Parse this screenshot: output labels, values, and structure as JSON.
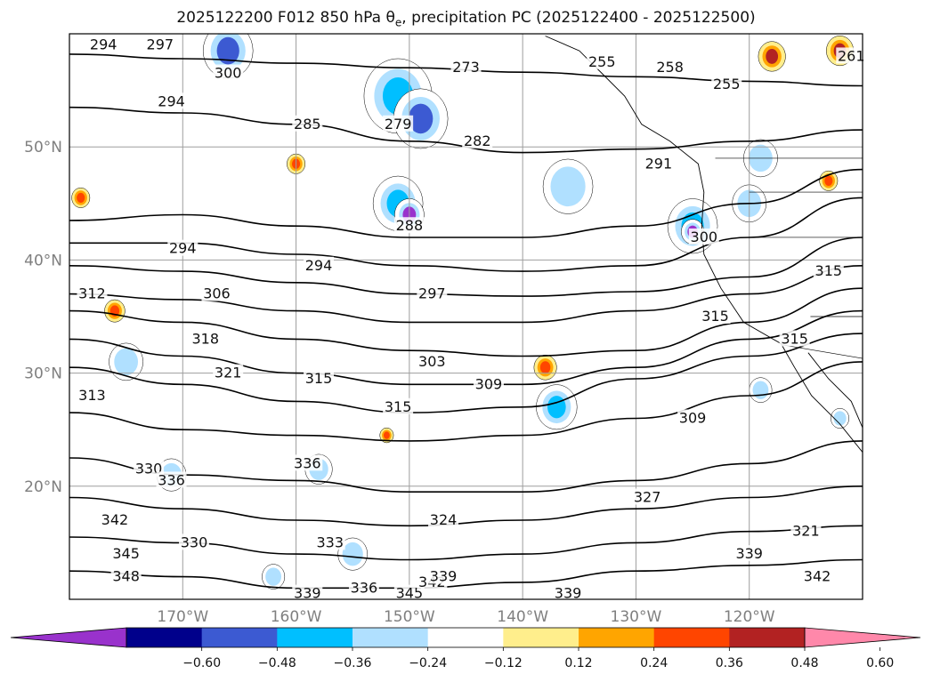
{
  "figure": {
    "title_prefix": "2025122200 F012 850 hPa θ",
    "title_sub": "e",
    "title_suffix": ", precipitation PC (2025122400 - 2025122500)"
  },
  "map": {
    "lon_range": [
      -180,
      -110
    ],
    "lat_range": [
      10,
      60
    ],
    "lat_ticks": [
      {
        "value": 50,
        "label": "50°N"
      },
      {
        "value": 40,
        "label": "40°N"
      },
      {
        "value": 30,
        "label": "30°N"
      },
      {
        "value": 20,
        "label": "20°N"
      }
    ],
    "lon_ticks": [
      {
        "value": -170,
        "label": "170°W"
      },
      {
        "value": -160,
        "label": "160°W"
      },
      {
        "value": -150,
        "label": "150°W"
      },
      {
        "value": -140,
        "label": "140°W"
      },
      {
        "value": -130,
        "label": "130°W"
      },
      {
        "value": -120,
        "label": "120°W"
      }
    ],
    "grid": true,
    "contour_color": "#000000",
    "contour_labels": [
      {
        "text": "294",
        "lon": -177,
        "lat": 59
      },
      {
        "text": "297",
        "lon": -172,
        "lat": 59
      },
      {
        "text": "300",
        "lon": -166,
        "lat": 56.5
      },
      {
        "text": "294",
        "lon": -171,
        "lat": 54
      },
      {
        "text": "285",
        "lon": -159,
        "lat": 52
      },
      {
        "text": "279",
        "lon": -151,
        "lat": 52
      },
      {
        "text": "273",
        "lon": -145,
        "lat": 57
      },
      {
        "text": "282",
        "lon": -144,
        "lat": 50.5
      },
      {
        "text": "255",
        "lon": -133,
        "lat": 57.5
      },
      {
        "text": "258",
        "lon": -127,
        "lat": 57
      },
      {
        "text": "255",
        "lon": -122,
        "lat": 55.5
      },
      {
        "text": "261",
        "lon": -111,
        "lat": 58
      },
      {
        "text": "291",
        "lon": -128,
        "lat": 48.5
      },
      {
        "text": "288",
        "lon": -150,
        "lat": 43
      },
      {
        "text": "294",
        "lon": -170,
        "lat": 41
      },
      {
        "text": "294",
        "lon": -158,
        "lat": 39.5
      },
      {
        "text": "312",
        "lon": -178,
        "lat": 37
      },
      {
        "text": "306",
        "lon": -167,
        "lat": 37
      },
      {
        "text": "297",
        "lon": -148,
        "lat": 37
      },
      {
        "text": "300",
        "lon": -124,
        "lat": 42
      },
      {
        "text": "315",
        "lon": -123,
        "lat": 35
      },
      {
        "text": "315",
        "lon": -113,
        "lat": 39
      },
      {
        "text": "318",
        "lon": -168,
        "lat": 33
      },
      {
        "text": "321",
        "lon": -166,
        "lat": 30
      },
      {
        "text": "303",
        "lon": -148,
        "lat": 31
      },
      {
        "text": "309",
        "lon": -143,
        "lat": 29
      },
      {
        "text": "315",
        "lon": -158,
        "lat": 29.5
      },
      {
        "text": "315",
        "lon": -151,
        "lat": 27
      },
      {
        "text": "315",
        "lon": -116,
        "lat": 33
      },
      {
        "text": "313",
        "lon": -178,
        "lat": 28
      },
      {
        "text": "309",
        "lon": -125,
        "lat": 26
      },
      {
        "text": "330",
        "lon": -173,
        "lat": 21.5
      },
      {
        "text": "336",
        "lon": -171,
        "lat": 20.5
      },
      {
        "text": "336",
        "lon": -159,
        "lat": 22
      },
      {
        "text": "342",
        "lon": -176,
        "lat": 17
      },
      {
        "text": "324",
        "lon": -147,
        "lat": 17
      },
      {
        "text": "327",
        "lon": -129,
        "lat": 19
      },
      {
        "text": "330",
        "lon": -169,
        "lat": 15
      },
      {
        "text": "333",
        "lon": -157,
        "lat": 15
      },
      {
        "text": "345",
        "lon": -175,
        "lat": 14
      },
      {
        "text": "348",
        "lon": -175,
        "lat": 12
      },
      {
        "text": "321",
        "lon": -115,
        "lat": 16
      },
      {
        "text": "339",
        "lon": -120,
        "lat": 14
      },
      {
        "text": "339",
        "lon": -159,
        "lat": 10.5
      },
      {
        "text": "336",
        "lon": -154,
        "lat": 11
      },
      {
        "text": "345",
        "lon": -150,
        "lat": 10.5
      },
      {
        "text": "342",
        "lon": -148,
        "lat": 11.5
      },
      {
        "text": "339",
        "lon": -147,
        "lat": 12
      },
      {
        "text": "339",
        "lon": -136,
        "lat": 10.5
      },
      {
        "text": "342",
        "lon": -114,
        "lat": 12
      }
    ]
  },
  "colorbar": {
    "colors": [
      "#9932cc",
      "#00008b",
      "#3c5ad2",
      "#00bfff",
      "#b0e0ff",
      "#ffffff",
      "#ffee8c",
      "#ffa500",
      "#ff4500",
      "#b22222",
      "#ff88aa"
    ],
    "tick_values": [
      "−0.60",
      "−0.48",
      "−0.36",
      "−0.24",
      "−0.12",
      "0.12",
      "0.24",
      "0.36",
      "0.48",
      "0.60"
    ]
  },
  "chart_data": {
    "type": "map",
    "field": "850 hPa equivalent potential temperature contours with precipitation PC shading",
    "init": "2025122200",
    "forecast": "F012",
    "valid_window": "2025122400 - 2025122500",
    "xlim": [
      -180,
      -110
    ],
    "ylim": [
      10,
      60
    ],
    "shading_levels": [
      -0.6,
      -0.48,
      -0.36,
      -0.24,
      -0.12,
      0.12,
      0.24,
      0.36,
      0.48,
      0.6
    ],
    "shading_blobs": [
      {
        "lon": -166,
        "lat": 58.5,
        "r": 2.2,
        "value": -0.48
      },
      {
        "lon": -151,
        "lat": 54.5,
        "r": 3.0,
        "value": -0.36
      },
      {
        "lon": -149,
        "lat": 52.5,
        "r": 2.4,
        "value": -0.48
      },
      {
        "lon": -151,
        "lat": 45,
        "r": 2.2,
        "value": -0.36
      },
      {
        "lon": -150,
        "lat": 44,
        "r": 1.3,
        "value": -0.6
      },
      {
        "lon": -136,
        "lat": 46.5,
        "r": 2.2,
        "value": -0.24
      },
      {
        "lon": -125,
        "lat": 43,
        "r": 2.2,
        "value": -0.36
      },
      {
        "lon": -125,
        "lat": 42.5,
        "r": 1.0,
        "value": -0.6
      },
      {
        "lon": -119,
        "lat": 49,
        "r": 1.5,
        "value": -0.24
      },
      {
        "lon": -120,
        "lat": 45,
        "r": 1.5,
        "value": -0.24
      },
      {
        "lon": -175,
        "lat": 31,
        "r": 1.5,
        "value": -0.24
      },
      {
        "lon": -137,
        "lat": 27,
        "r": 1.8,
        "value": -0.36
      },
      {
        "lon": -138,
        "lat": 30.5,
        "r": 1.0,
        "value": 0.36
      },
      {
        "lon": -176,
        "lat": 35.5,
        "r": 0.9,
        "value": 0.36
      },
      {
        "lon": -152,
        "lat": 24.5,
        "r": 0.6,
        "value": 0.36
      },
      {
        "lon": -112,
        "lat": 58.5,
        "r": 1.2,
        "value": 0.48
      },
      {
        "lon": -118,
        "lat": 58,
        "r": 1.2,
        "value": 0.48
      },
      {
        "lon": -171,
        "lat": 21,
        "r": 1.3,
        "value": -0.24
      },
      {
        "lon": -158,
        "lat": 21.5,
        "r": 1.2,
        "value": -0.24
      },
      {
        "lon": -155,
        "lat": 14,
        "r": 1.3,
        "value": -0.24
      },
      {
        "lon": -162,
        "lat": 12,
        "r": 1.0,
        "value": -0.24
      },
      {
        "lon": -119,
        "lat": 28.5,
        "r": 1.0,
        "value": -0.24
      },
      {
        "lon": -112,
        "lat": 26,
        "r": 0.8,
        "value": -0.24
      },
      {
        "lon": -179,
        "lat": 45.5,
        "r": 0.8,
        "value": 0.36
      },
      {
        "lon": -160,
        "lat": 48.5,
        "r": 0.8,
        "value": 0.36
      },
      {
        "lon": -113,
        "lat": 47,
        "r": 0.8,
        "value": 0.36
      }
    ],
    "contours": [
      {
        "lats": [
          58.2,
          57.8,
          57.4,
          57.0,
          56.6,
          56.2,
          55.8,
          55.4
        ]
      },
      {
        "lats": [
          53.5,
          53.0,
          52.0,
          50.5,
          49.5,
          49.8,
          50.5,
          51.5
        ]
      },
      {
        "lats": [
          43.5,
          44.0,
          43.0,
          42.0,
          42.0,
          43.0,
          45.0,
          48.0
        ]
      },
      {
        "lats": [
          41.5,
          41.5,
          40.5,
          39.5,
          39.0,
          39.5,
          42.0,
          45.5
        ]
      },
      {
        "lats": [
          39.5,
          39.0,
          38.0,
          37.0,
          36.8,
          37.2,
          38.5,
          42.0
        ]
      },
      {
        "lats": [
          37.0,
          36.5,
          35.5,
          34.5,
          34.5,
          35.5,
          37.0,
          39.5
        ]
      },
      {
        "lats": [
          35.5,
          34.5,
          33.0,
          32.0,
          31.5,
          32.0,
          34.5,
          37.5
        ]
      },
      {
        "lats": [
          33.0,
          31.5,
          30.0,
          29.0,
          29.0,
          30.5,
          33.0,
          35.5
        ]
      },
      {
        "lats": [
          30.5,
          29.0,
          27.5,
          26.5,
          27.0,
          29.5,
          31.5,
          33.5
        ]
      },
      {
        "lats": [
          26.5,
          25.0,
          24.5,
          24.0,
          24.5,
          26.0,
          28.0,
          31.0
        ]
      },
      {
        "lats": [
          22.5,
          21.0,
          20.5,
          19.5,
          19.5,
          20.5,
          22.0,
          24.0
        ]
      },
      {
        "lats": [
          19.0,
          18.0,
          17.0,
          16.5,
          17.0,
          18.0,
          19.0,
          20.0
        ]
      },
      {
        "lats": [
          15.5,
          15.0,
          14.0,
          13.5,
          14.0,
          15.0,
          16.0,
          16.5
        ]
      },
      {
        "lats": [
          12.5,
          12.0,
          11.0,
          11.0,
          11.5,
          12.5,
          13.0,
          13.5
        ]
      }
    ]
  }
}
